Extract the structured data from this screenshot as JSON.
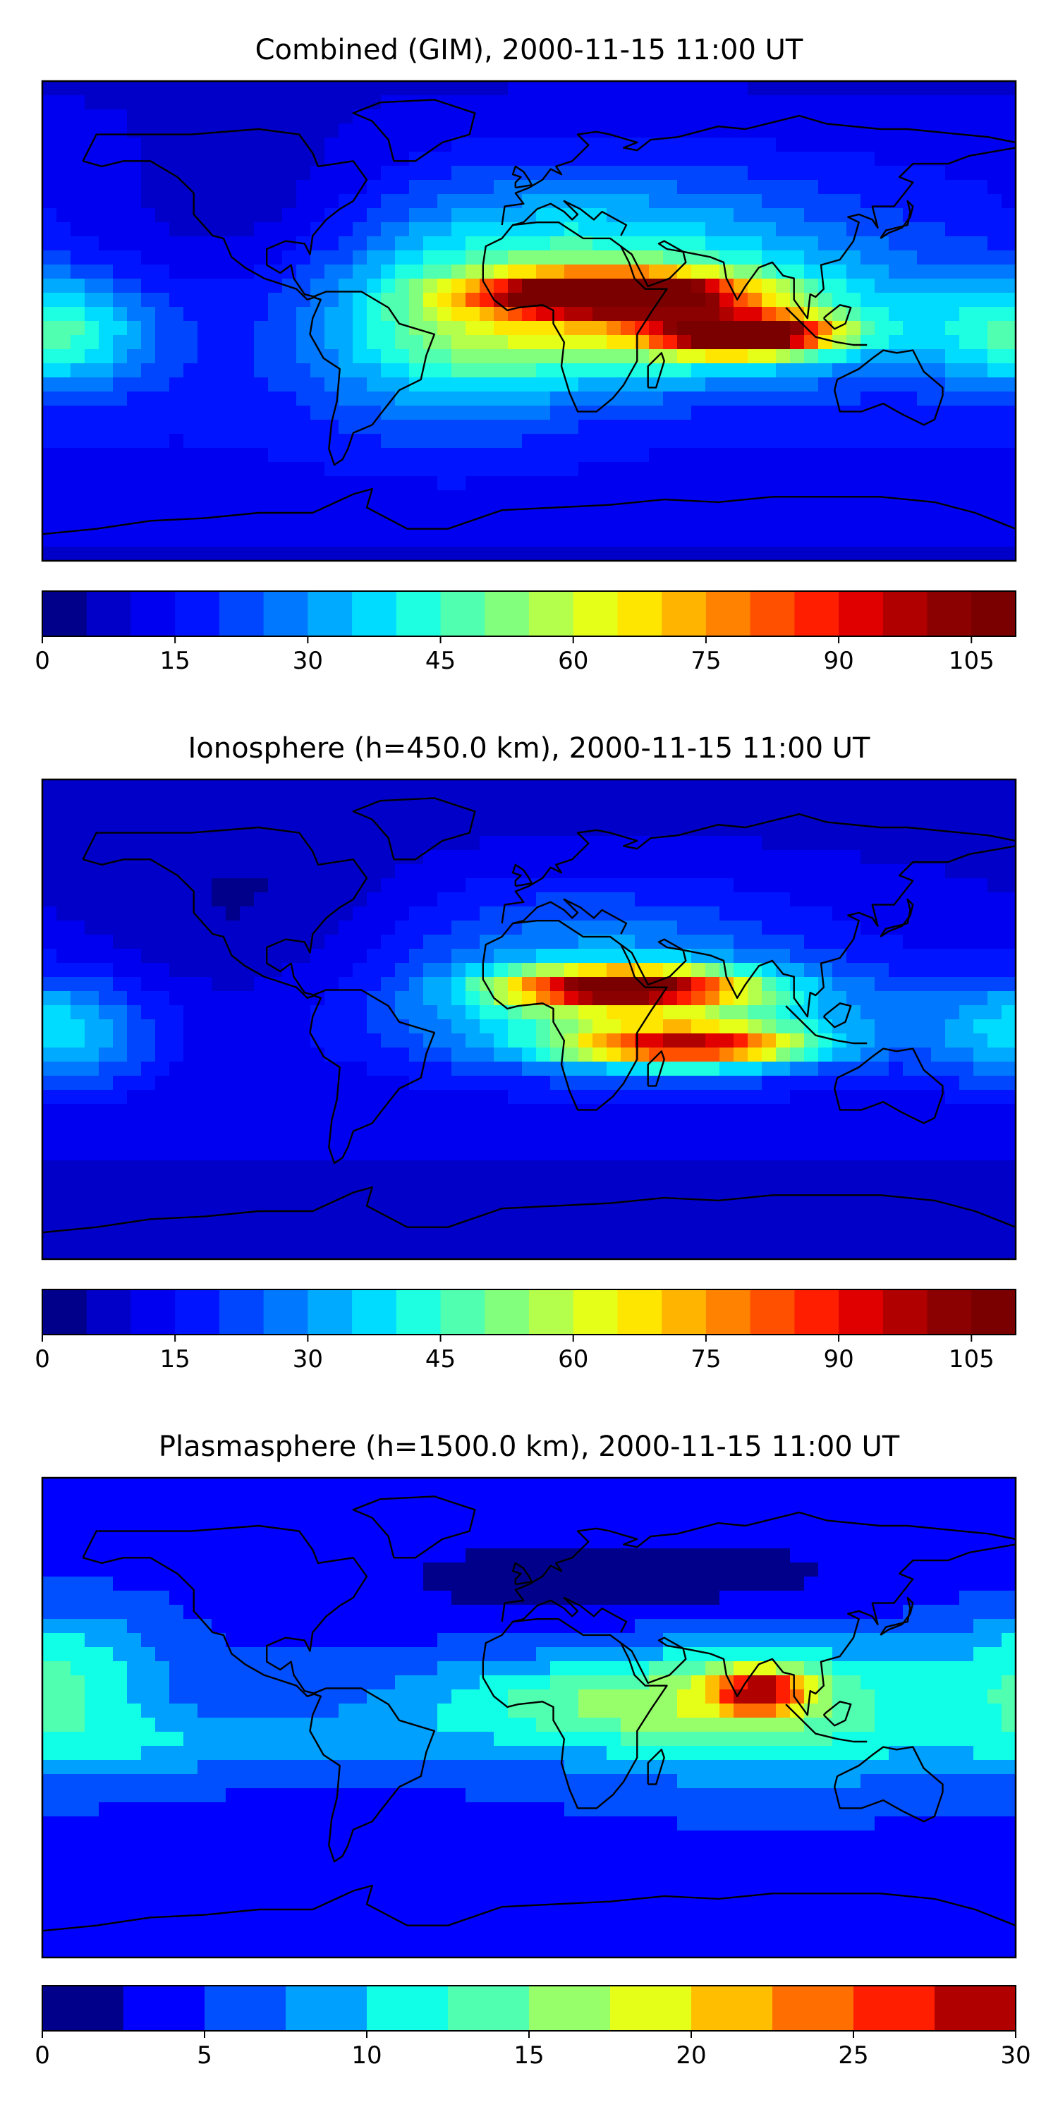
{
  "figure": "stacked global TEC maps",
  "chart_data": [
    {
      "type": "heatmap",
      "id": "combined",
      "title": "Combined (GIM), 2000-11-15 11:00 UT",
      "xlabel": "",
      "ylabel": "",
      "colorbar": {
        "range": [
          0,
          110
        ],
        "levels": [
          0,
          5,
          10,
          15,
          20,
          25,
          30,
          35,
          40,
          45,
          50,
          55,
          60,
          65,
          70,
          75,
          80,
          85,
          90,
          95,
          100,
          105,
          110
        ],
        "ticks": [
          0,
          15,
          30,
          45,
          60,
          75,
          90,
          105
        ],
        "tick_labels": [
          "0",
          "15",
          "30",
          "45",
          "60",
          "75",
          "90",
          "105"
        ]
      },
      "field": {
        "background": 17,
        "features": [
          {
            "lon": 30,
            "lat": 10,
            "dlon": 30,
            "dlat": 5,
            "amp": 95
          },
          {
            "lon": 80,
            "lat": -5,
            "dlon": 22,
            "dlat": 5,
            "amp": 85
          },
          {
            "lon": 50,
            "lat": 0,
            "dlon": 60,
            "dlat": 16,
            "amp": 40
          },
          {
            "lon": 20,
            "lat": 30,
            "dlon": 70,
            "dlat": 22,
            "amp": 22
          },
          {
            "lon": -30,
            "lat": -10,
            "dlon": 35,
            "dlat": 25,
            "amp": 20
          },
          {
            "lon": -175,
            "lat": -5,
            "dlon": 25,
            "dlat": 15,
            "amp": 28
          },
          {
            "lon": -100,
            "lat": 40,
            "dlon": 40,
            "dlat": 25,
            "amp": -12
          }
        ]
      }
    },
    {
      "type": "heatmap",
      "id": "ionosphere",
      "title": "Ionosphere  (h=450.0 km), 2000-11-15 11:00 UT",
      "xlabel": "",
      "ylabel": "",
      "colorbar": {
        "range": [
          0,
          110
        ],
        "levels": [
          0,
          5,
          10,
          15,
          20,
          25,
          30,
          35,
          40,
          45,
          50,
          55,
          60,
          65,
          70,
          75,
          80,
          85,
          90,
          95,
          100,
          105,
          110
        ],
        "ticks": [
          0,
          15,
          30,
          45,
          60,
          75,
          90,
          105
        ],
        "tick_labels": [
          "0",
          "15",
          "30",
          "45",
          "60",
          "75",
          "90",
          "105"
        ]
      },
      "field": {
        "background": 12,
        "features": [
          {
            "lon": 35,
            "lat": 12,
            "dlon": 30,
            "dlat": 5,
            "amp": 75
          },
          {
            "lon": 60,
            "lat": -10,
            "dlon": 30,
            "dlat": 5,
            "amp": 60
          },
          {
            "lon": 45,
            "lat": 0,
            "dlon": 60,
            "dlat": 15,
            "amp": 35
          },
          {
            "lon": 20,
            "lat": 30,
            "dlon": 60,
            "dlat": 20,
            "amp": 15
          },
          {
            "lon": -175,
            "lat": -5,
            "dlon": 25,
            "dlat": 15,
            "amp": 25
          },
          {
            "lon": -100,
            "lat": 40,
            "dlon": 40,
            "dlat": 25,
            "amp": -8
          }
        ]
      }
    },
    {
      "type": "heatmap",
      "id": "plasmasphere",
      "title": "Plasmasphere (h=1500.0 km), 2000-11-15 11:00 UT",
      "xlabel": "",
      "ylabel": "",
      "colorbar": {
        "range": [
          0,
          30
        ],
        "levels": [
          0,
          2.5,
          5,
          7.5,
          10,
          12.5,
          15,
          17.5,
          20,
          22.5,
          25,
          27.5,
          30
        ],
        "ticks": [
          0,
          5,
          10,
          15,
          20,
          25,
          30
        ],
        "tick_labels": [
          "0",
          "5",
          "10",
          "15",
          "20",
          "25",
          "30"
        ]
      },
      "field": {
        "background": 5,
        "features": [
          {
            "lon": 85,
            "lat": 10,
            "dlon": 12,
            "dlat": 6,
            "amp": 16
          },
          {
            "lon": 90,
            "lat": 5,
            "dlon": 50,
            "dlat": 20,
            "amp": 9
          },
          {
            "lon": 15,
            "lat": 5,
            "dlon": 50,
            "dlat": 12,
            "amp": 7
          },
          {
            "lon": -170,
            "lat": 15,
            "dlon": 25,
            "dlat": 20,
            "amp": 7
          },
          {
            "lon": -120,
            "lat": -10,
            "dlon": 60,
            "dlat": 8,
            "amp": 4
          },
          {
            "lon": 40,
            "lat": 50,
            "dlon": 70,
            "dlat": 12,
            "amp": -4
          }
        ]
      }
    }
  ],
  "colors": {
    "jet22": [
      "#00008b",
      "#0000c8",
      "#0000f0",
      "#0014ff",
      "#0046ff",
      "#0078ff",
      "#00aaff",
      "#00dcff",
      "#1effe1",
      "#50ffaf",
      "#82ff7d",
      "#b4ff4b",
      "#e6ff19",
      "#ffe600",
      "#ffb400",
      "#ff8200",
      "#ff5000",
      "#ff1e00",
      "#e00000",
      "#b00000",
      "#8b0000",
      "#7a0000"
    ],
    "jet12": [
      "#00008b",
      "#0000ff",
      "#0050ff",
      "#00a0ff",
      "#10ffe6",
      "#50ffaf",
      "#96ff6a",
      "#e6ff19",
      "#ffbe00",
      "#ff6e00",
      "#ff1e00",
      "#b00000"
    ],
    "coast": "#000000"
  }
}
